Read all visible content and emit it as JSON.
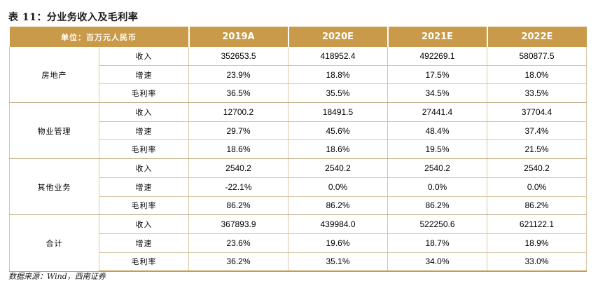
{
  "title": "表 11：分业务收入及毛利率",
  "header": {
    "unit": "单位：百万元人民币",
    "years": [
      "2019A",
      "2020E",
      "2021E",
      "2022E"
    ]
  },
  "groups": [
    {
      "name": "房地产",
      "rows": [
        {
          "metric": "收入",
          "values": [
            "352653.5",
            "418952.4",
            "492269.1",
            "580877.5"
          ]
        },
        {
          "metric": "增速",
          "values": [
            "23.9%",
            "18.8%",
            "17.5%",
            "18.0%"
          ]
        },
        {
          "metric": "毛利率",
          "values": [
            "36.5%",
            "35.5%",
            "34.5%",
            "33.5%"
          ]
        }
      ]
    },
    {
      "name": "物业管理",
      "rows": [
        {
          "metric": "收入",
          "values": [
            "12700.2",
            "18491.5",
            "27441.4",
            "37704.4"
          ]
        },
        {
          "metric": "增速",
          "values": [
            "29.7%",
            "45.6%",
            "48.4%",
            "37.4%"
          ]
        },
        {
          "metric": "毛利率",
          "values": [
            "18.6%",
            "18.6%",
            "19.5%",
            "21.5%"
          ]
        }
      ]
    },
    {
      "name": "其他业务",
      "rows": [
        {
          "metric": "收入",
          "values": [
            "2540.2",
            "2540.2",
            "2540.2",
            "2540.2"
          ]
        },
        {
          "metric": "增速",
          "values": [
            "-22.1%",
            "0.0%",
            "0.0%",
            "0.0%"
          ]
        },
        {
          "metric": "毛利率",
          "values": [
            "86.2%",
            "86.2%",
            "86.2%",
            "86.2%"
          ]
        }
      ]
    },
    {
      "name": "合计",
      "rows": [
        {
          "metric": "收入",
          "values": [
            "367893.9",
            "439984.0",
            "522250.6",
            "621122.1"
          ]
        },
        {
          "metric": "增速",
          "values": [
            "23.6%",
            "19.6%",
            "18.7%",
            "18.9%"
          ]
        },
        {
          "metric": "毛利率",
          "values": [
            "36.2%",
            "35.1%",
            "34.0%",
            "33.0%"
          ]
        }
      ]
    }
  ],
  "source": "数据来源：Wind，西南证券",
  "colors": {
    "header_bg": "#c99a4a",
    "header_text": "#ffffff",
    "rule": "#d9c7a6"
  }
}
